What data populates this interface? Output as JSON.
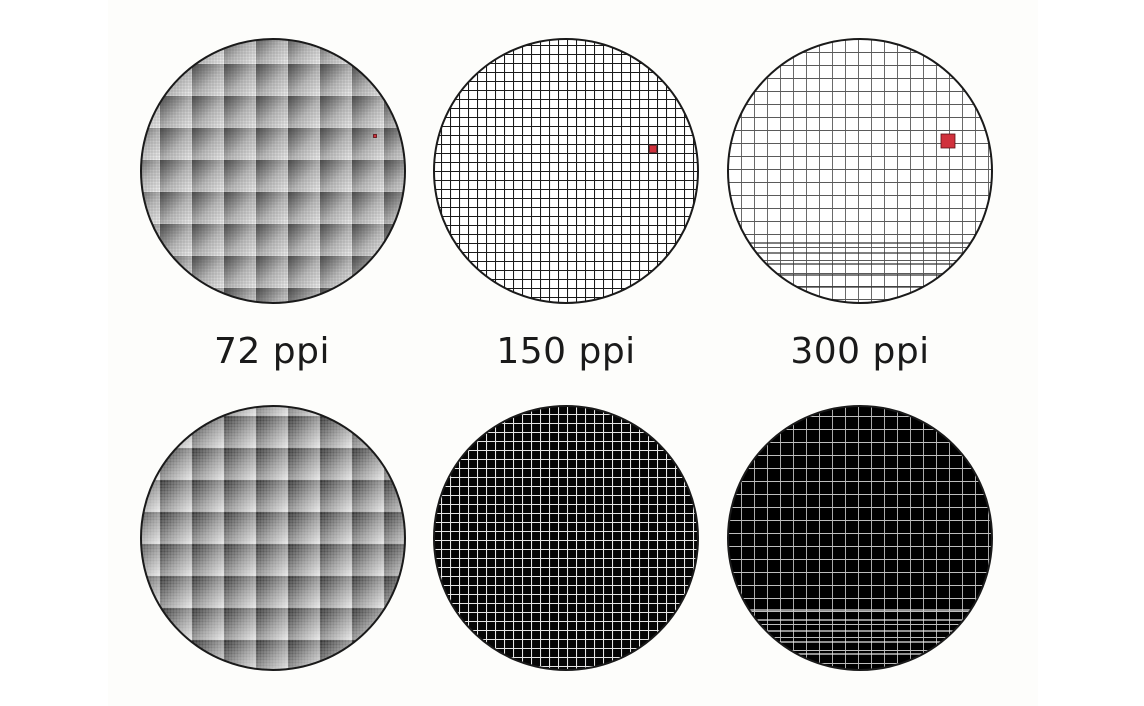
{
  "labels": {
    "low": "72 ppi",
    "medium": "150 ppi",
    "high": "300 ppi"
  },
  "colors": {
    "highlight": "#d0313c",
    "outline": "#1a1a1a",
    "background": "#fdfdfb"
  },
  "rows": {
    "top": "light",
    "bottom": "dark"
  }
}
